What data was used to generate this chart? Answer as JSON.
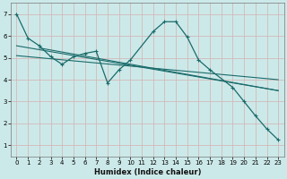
{
  "xlabel": "Humidex (Indice chaleur)",
  "bg_color": "#cce9e9",
  "line_color": "#1a6b6b",
  "grid_color": "#b8d8d8",
  "xlim": [
    -0.5,
    23.5
  ],
  "ylim": [
    0.5,
    7.5
  ],
  "xticks": [
    0,
    1,
    2,
    3,
    4,
    5,
    6,
    7,
    8,
    9,
    10,
    11,
    12,
    13,
    14,
    15,
    16,
    17,
    18,
    19,
    20,
    21,
    22,
    23
  ],
  "yticks": [
    1,
    2,
    3,
    4,
    5,
    6,
    7
  ],
  "curve": {
    "x": [
      0,
      1,
      2,
      3,
      4,
      5,
      6,
      7,
      8,
      9,
      10,
      12,
      13,
      14,
      15,
      16,
      17,
      19,
      20,
      21,
      22,
      23
    ],
    "y": [
      7,
      5.9,
      5.55,
      5.05,
      4.7,
      5.05,
      5.2,
      5.3,
      3.85,
      4.45,
      4.9,
      6.2,
      6.65,
      6.65,
      5.95,
      4.9,
      4.45,
      3.65,
      3.0,
      2.35,
      1.75,
      1.25
    ]
  },
  "lines": [
    {
      "x": [
        0,
        23
      ],
      "y": [
        5.55,
        3.5
      ]
    },
    {
      "x": [
        0,
        23
      ],
      "y": [
        5.1,
        4.0
      ]
    },
    {
      "x": [
        2,
        23
      ],
      "y": [
        5.45,
        3.5
      ]
    }
  ]
}
